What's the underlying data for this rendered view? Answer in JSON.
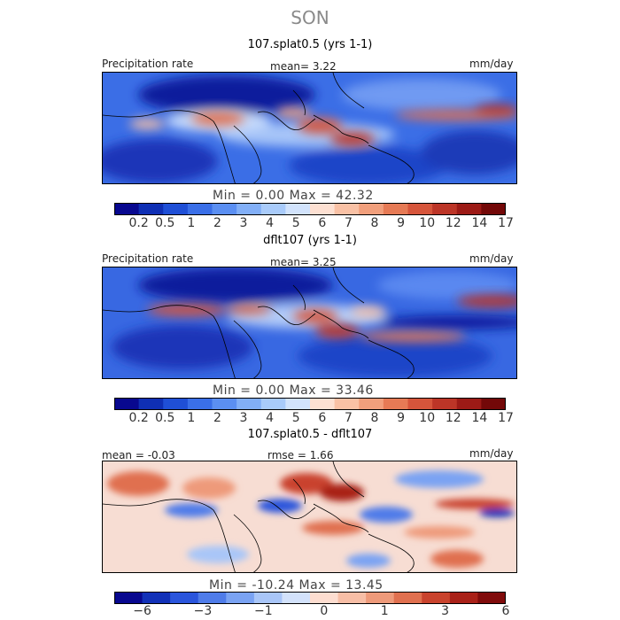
{
  "season": "SON",
  "panels": [
    {
      "title": "107.splat0.5 (yrs 1-1)",
      "left_label": "Precipitation rate",
      "center_label": "mean=   3.22",
      "right_label": "mm/day",
      "stats": "Min =   0.00 Max =  42.32",
      "colorbar": {
        "colors": [
          "#08088f",
          "#0f2fb4",
          "#1f4fd6",
          "#3a6fe8",
          "#5b8ff2",
          "#82aff7",
          "#a9cbfa",
          "#d2e3fc",
          "#fde0d2",
          "#f9c1a5",
          "#f19f7c",
          "#e67a55",
          "#d6553b",
          "#bc3527",
          "#9c1a16",
          "#730808"
        ],
        "ticks": [
          "0.2",
          "0.5",
          "1",
          "2",
          "3",
          "4",
          "5",
          "6",
          "7",
          "8",
          "9",
          "10",
          "12",
          "14",
          "17"
        ]
      }
    },
    {
      "title": "dflt107 (yrs 1-1)",
      "left_label": "Precipitation rate",
      "center_label": "mean=   3.25",
      "right_label": "mm/day",
      "stats": "Min =   0.00 Max =  33.46",
      "colorbar": {
        "colors": [
          "#08088f",
          "#0f2fb4",
          "#1f4fd6",
          "#3a6fe8",
          "#5b8ff2",
          "#82aff7",
          "#a9cbfa",
          "#d2e3fc",
          "#fde0d2",
          "#f9c1a5",
          "#f19f7c",
          "#e67a55",
          "#d6553b",
          "#bc3527",
          "#9c1a16",
          "#730808"
        ],
        "ticks": [
          "0.2",
          "0.5",
          "1",
          "2",
          "3",
          "4",
          "5",
          "6",
          "7",
          "8",
          "9",
          "10",
          "12",
          "14",
          "17"
        ]
      }
    },
    {
      "title": "107.splat0.5 - dflt107",
      "left_label": "mean =  -0.03",
      "center_label": "rmse =   1.66",
      "right_label": "mm/day",
      "stats": "Min = -10.24 Max =  13.45",
      "colorbar": {
        "colors": [
          "#08088f",
          "#1231b8",
          "#2a55dc",
          "#4f7ce9",
          "#7aa3f3",
          "#a9c6f8",
          "#d3e2fb",
          "#fdddd0",
          "#f7bea6",
          "#ee9a7a",
          "#e0704f",
          "#c9432d",
          "#a92118",
          "#800b0b"
        ],
        "ticks": [
          "-6",
          "-3",
          "-1",
          "0",
          "1",
          "3",
          "6"
        ]
      }
    }
  ],
  "chart_data": [
    {
      "type": "heatmap",
      "title": "107.splat0.5 (yrs 1-1)",
      "variable": "Precipitation rate",
      "units": "mm/day",
      "season": "SON",
      "mean": 3.22,
      "min": 0.0,
      "max": 42.32,
      "levels": [
        0.2,
        0.5,
        1,
        2,
        3,
        4,
        5,
        6,
        7,
        8,
        9,
        10,
        12,
        14,
        17
      ]
    },
    {
      "type": "heatmap",
      "title": "dflt107 (yrs 1-1)",
      "variable": "Precipitation rate",
      "units": "mm/day",
      "season": "SON",
      "mean": 3.25,
      "min": 0.0,
      "max": 33.46,
      "levels": [
        0.2,
        0.5,
        1,
        2,
        3,
        4,
        5,
        6,
        7,
        8,
        9,
        10,
        12,
        14,
        17
      ]
    },
    {
      "type": "heatmap",
      "title": "107.splat0.5 - dflt107",
      "units": "mm/day",
      "mean": -0.03,
      "rmse": 1.66,
      "min": -10.24,
      "max": 13.45,
      "levels": [
        -6,
        -3,
        -1,
        0,
        1,
        3,
        6
      ]
    }
  ]
}
